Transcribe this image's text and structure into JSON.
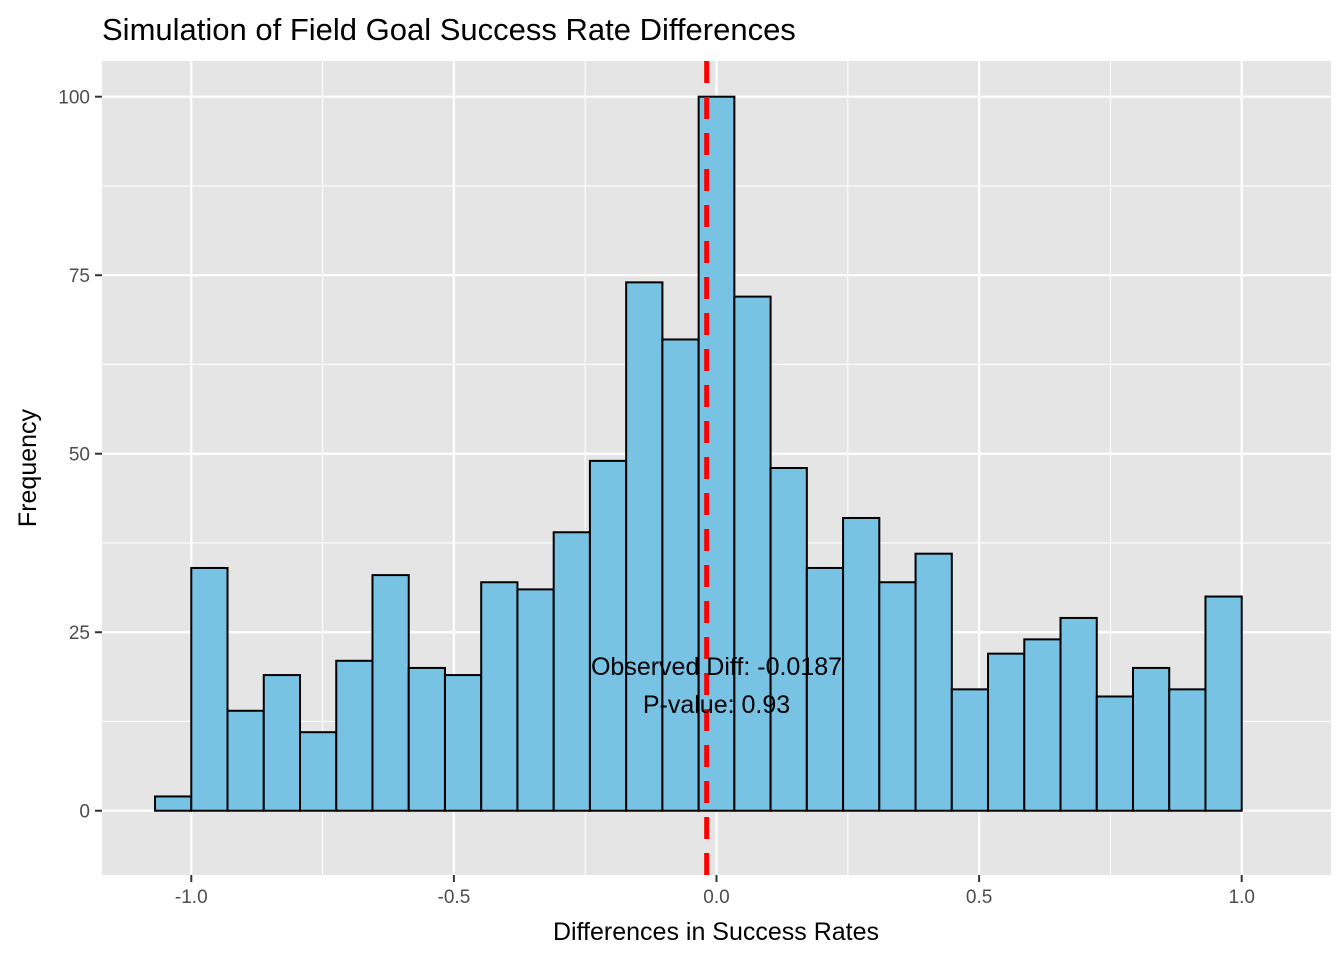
{
  "chart_data": {
    "type": "histogram",
    "title": "Simulation of Field Goal Success Rate Differences",
    "xlabel": "Differences in Success Rates",
    "ylabel": "Frequency",
    "xlim": [
      -1.17,
      1.17
    ],
    "ylim": [
      -9,
      105
    ],
    "x_ticks": [
      -1.0,
      -0.5,
      0.0,
      0.5,
      1.0
    ],
    "x_tick_labels": [
      "-1.0",
      "-0.5",
      "0.0",
      "0.5",
      "1.0"
    ],
    "y_ticks": [
      0,
      25,
      50,
      75,
      100
    ],
    "y_tick_labels": [
      "0",
      "25",
      "50",
      "75",
      "100"
    ],
    "bin_width": 0.069,
    "bins": [
      {
        "x0": -1.069,
        "x1": -1.0,
        "count": 2
      },
      {
        "x0": -1.0,
        "x1": -0.931,
        "count": 34
      },
      {
        "x0": -0.931,
        "x1": -0.862,
        "count": 14
      },
      {
        "x0": -0.862,
        "x1": -0.793,
        "count": 19
      },
      {
        "x0": -0.793,
        "x1": -0.724,
        "count": 11
      },
      {
        "x0": -0.724,
        "x1": -0.655,
        "count": 21
      },
      {
        "x0": -0.655,
        "x1": -0.586,
        "count": 33
      },
      {
        "x0": -0.586,
        "x1": -0.517,
        "count": 20
      },
      {
        "x0": -0.517,
        "x1": -0.448,
        "count": 19
      },
      {
        "x0": -0.448,
        "x1": -0.379,
        "count": 32
      },
      {
        "x0": -0.379,
        "x1": -0.31,
        "count": 31
      },
      {
        "x0": -0.31,
        "x1": -0.241,
        "count": 39
      },
      {
        "x0": -0.241,
        "x1": -0.172,
        "count": 49
      },
      {
        "x0": -0.172,
        "x1": -0.103,
        "count": 74
      },
      {
        "x0": -0.103,
        "x1": -0.034,
        "count": 66
      },
      {
        "x0": -0.034,
        "x1": 0.034,
        "count": 100
      },
      {
        "x0": 0.034,
        "x1": 0.103,
        "count": 72
      },
      {
        "x0": 0.103,
        "x1": 0.172,
        "count": 48
      },
      {
        "x0": 0.172,
        "x1": 0.241,
        "count": 34
      },
      {
        "x0": 0.241,
        "x1": 0.31,
        "count": 41
      },
      {
        "x0": 0.31,
        "x1": 0.379,
        "count": 32
      },
      {
        "x0": 0.379,
        "x1": 0.448,
        "count": 36
      },
      {
        "x0": 0.448,
        "x1": 0.517,
        "count": 17
      },
      {
        "x0": 0.517,
        "x1": 0.586,
        "count": 22
      },
      {
        "x0": 0.586,
        "x1": 0.655,
        "count": 24
      },
      {
        "x0": 0.655,
        "x1": 0.724,
        "count": 27
      },
      {
        "x0": 0.724,
        "x1": 0.793,
        "count": 16
      },
      {
        "x0": 0.793,
        "x1": 0.862,
        "count": 20
      },
      {
        "x0": 0.862,
        "x1": 0.931,
        "count": 17
      },
      {
        "x0": 0.931,
        "x1": 1.0,
        "count": 30
      }
    ],
    "reference_line": {
      "x": -0.0187,
      "color": "#ff0000",
      "style": "dashed"
    },
    "annotation": {
      "lines": [
        "Observed Diff: -0.0187",
        "P-value: 0.93"
      ],
      "x": 0.0,
      "y": 19
    },
    "colors": {
      "bar_fill": "#78c2e4",
      "bar_stroke": "#000000",
      "panel_background": "#e5e5e5",
      "grid": "#ffffff"
    },
    "grid": true,
    "legend": "none"
  }
}
